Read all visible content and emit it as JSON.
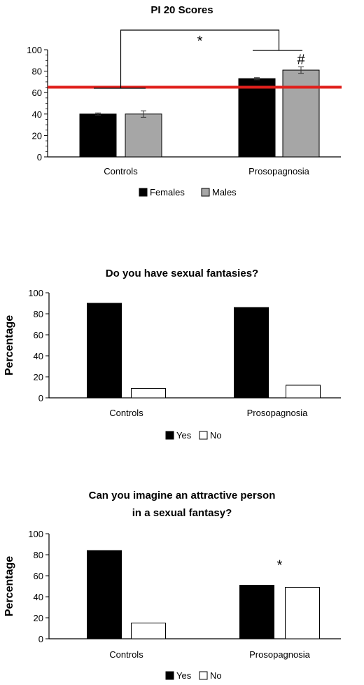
{
  "chart_data": [
    {
      "type": "bar",
      "title": "PI 20 Scores",
      "ylabel": "",
      "categories": [
        "Controls",
        "Prosopagnosia"
      ],
      "series": [
        {
          "name": "Females",
          "color": "#000000",
          "values": [
            40,
            73
          ],
          "errors": [
            1,
            1
          ]
        },
        {
          "name": "Males",
          "color": "#a6a6a6",
          "values": [
            40,
            81
          ],
          "errors": [
            3,
            3
          ]
        }
      ],
      "ylim": [
        0,
        100
      ],
      "yticks": [
        0,
        20,
        40,
        60,
        80,
        100
      ],
      "reference_line": {
        "value": 65,
        "color": "#e0201c"
      },
      "annotations": [
        {
          "text": "*",
          "kind": "between-groups"
        },
        {
          "text": "#",
          "kind": "prosopagnosia-males"
        }
      ],
      "legend": "bottom"
    },
    {
      "type": "bar",
      "title": "Do you have sexual fantasies?",
      "ylabel": "Percentage",
      "categories": [
        "Controls",
        "Prosopagnosia"
      ],
      "series": [
        {
          "name": "Yes",
          "color": "#000000",
          "values": [
            90,
            86
          ]
        },
        {
          "name": "No",
          "color": "#ffffff",
          "values": [
            9,
            12
          ]
        }
      ],
      "ylim": [
        0,
        100
      ],
      "yticks": [
        0,
        20,
        40,
        60,
        80,
        100
      ],
      "annotations": [],
      "legend": "bottom"
    },
    {
      "type": "bar",
      "title_lines": [
        "Can you imagine an attractive person",
        "in a sexual fantasy?"
      ],
      "ylabel": "Percentage",
      "categories": [
        "Controls",
        "Prosopagnosia"
      ],
      "series": [
        {
          "name": "Yes",
          "color": "#000000",
          "values": [
            84,
            51
          ]
        },
        {
          "name": "No",
          "color": "#ffffff",
          "values": [
            15,
            49
          ]
        }
      ],
      "ylim": [
        0,
        100
      ],
      "yticks": [
        0,
        20,
        40,
        60,
        80,
        100
      ],
      "annotations": [
        {
          "text": "*",
          "kind": "prosopagnosia-group"
        }
      ],
      "legend": "bottom"
    }
  ]
}
